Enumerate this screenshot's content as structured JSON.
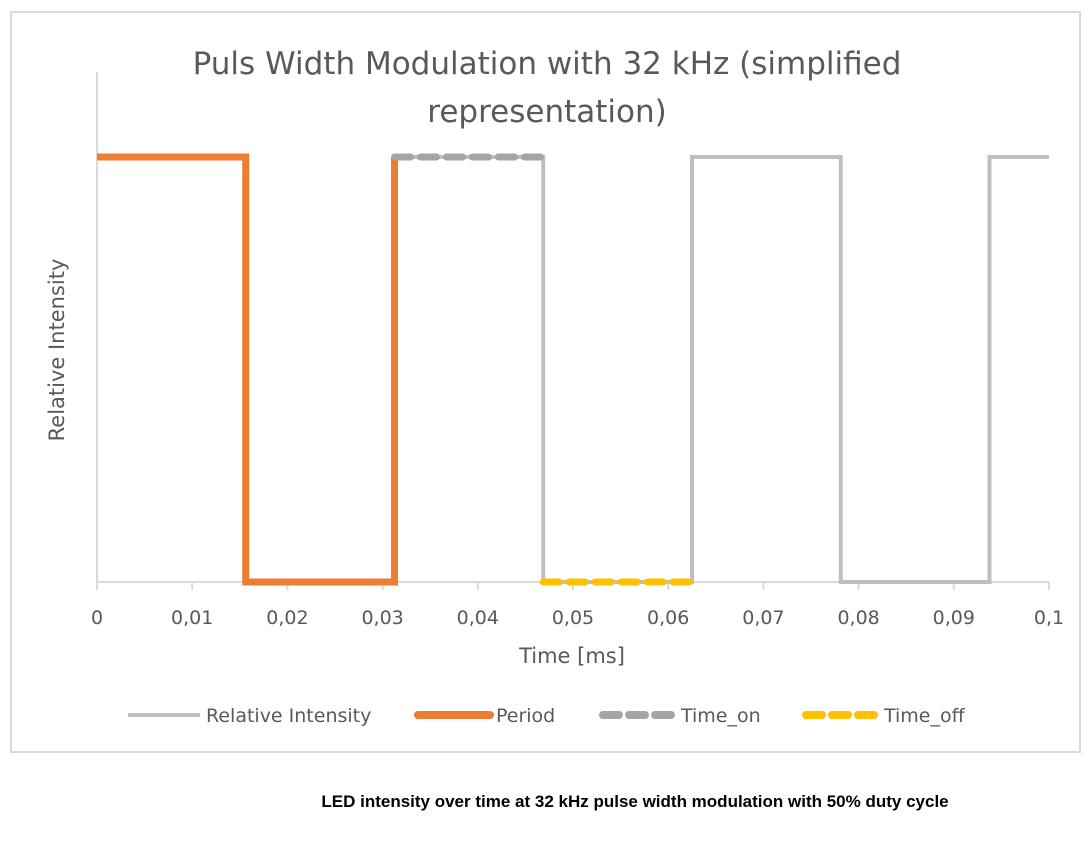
{
  "chart_data": {
    "type": "line",
    "title": "Puls Width Modulation with 32 kHz (simplified representation)",
    "title_lines": [
      "Puls Width Modulation with 32 kHz (simplified",
      "representation)"
    ],
    "xlabel": "Time [ms]",
    "ylabel": "Relative Intensity",
    "xlim": [
      0,
      0.1
    ],
    "ylim": [
      0,
      1.2
    ],
    "x_ticks": [
      "0",
      "0,01",
      "0,02",
      "0,03",
      "0,04",
      "0,05",
      "0,06",
      "0,07",
      "0,08",
      "0,09",
      "0,1"
    ],
    "grid": false,
    "legend_position": "bottom",
    "series": [
      {
        "name": "Relative Intensity",
        "color": "#BFBFBF",
        "style": "solid",
        "x": [
          0,
          0.015625,
          0.015625,
          0.03125,
          0.03125,
          0.046875,
          0.046875,
          0.0625,
          0.0625,
          0.078125,
          0.078125,
          0.09375,
          0.09375,
          0.1
        ],
        "y": [
          1,
          1,
          0,
          0,
          1,
          1,
          0,
          0,
          1,
          1,
          0,
          0,
          1,
          1
        ]
      },
      {
        "name": "Period",
        "color": "#ED7D31",
        "style": "solid",
        "x": [
          0,
          0.015625,
          0.015625,
          0.03125,
          0.03125
        ],
        "y": [
          1,
          1,
          0,
          0,
          1
        ]
      },
      {
        "name": "Time_on",
        "color": "#A5A5A5",
        "style": "dashed",
        "x": [
          0.03125,
          0.046875
        ],
        "y": [
          1,
          1
        ]
      },
      {
        "name": "Time_off",
        "color": "#FFC000",
        "style": "dashed",
        "x": [
          0.046875,
          0.0625
        ],
        "y": [
          0,
          0
        ]
      }
    ]
  },
  "caption": "LED intensity over time at 32 kHz pulse width modulation with 50% duty cycle"
}
